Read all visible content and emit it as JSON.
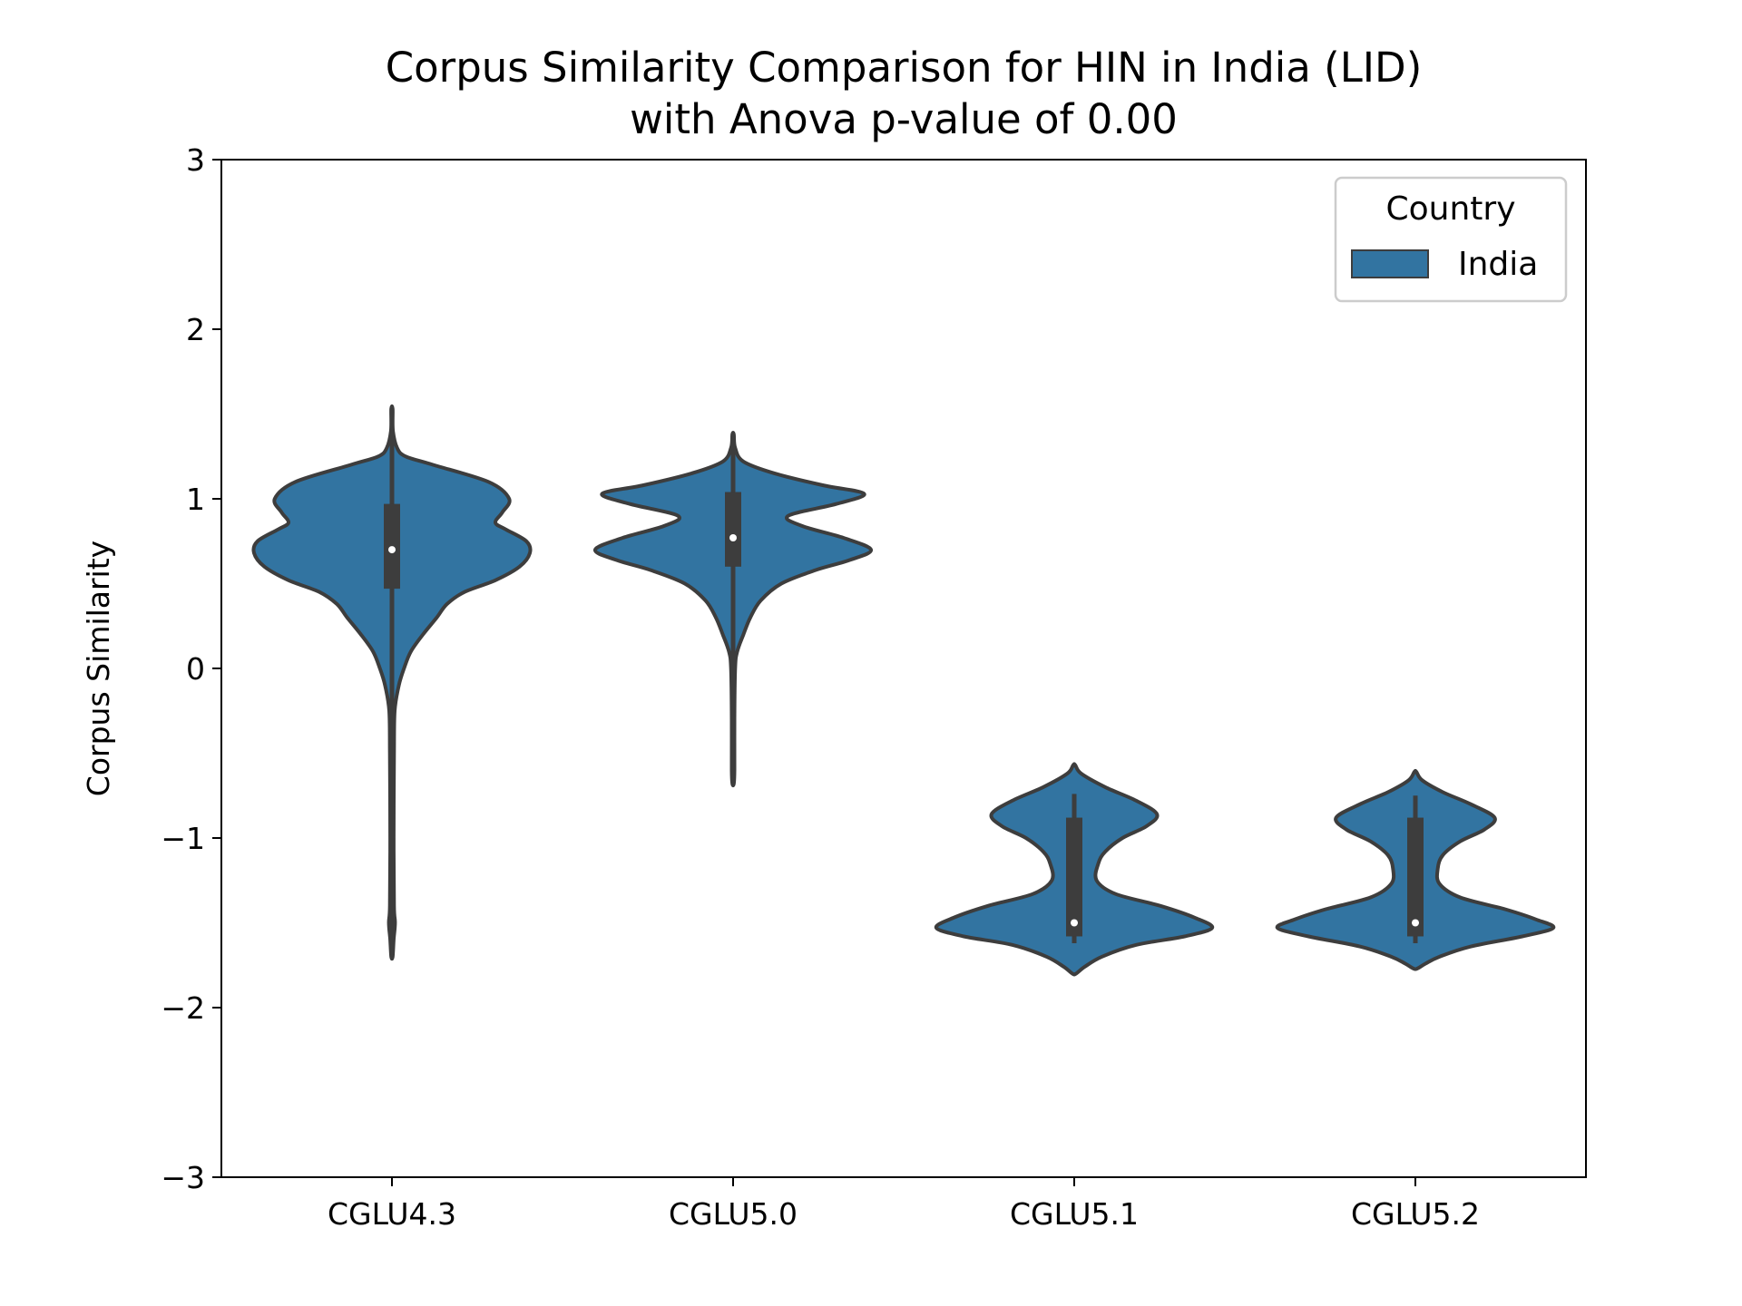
{
  "chart_data": {
    "type": "violin",
    "title": [
      "Corpus Similarity Comparison for HIN in India (LID)",
      "with Anova p-value of 0.00"
    ],
    "xlabel": "",
    "ylabel": "Corpus Similarity",
    "ylim": [
      -3,
      3
    ],
    "yticks": [
      -3,
      -2,
      -1,
      0,
      1,
      2,
      3
    ],
    "ytick_labels": [
      "−3",
      "−2",
      "−1",
      "0",
      "1",
      "2",
      "3"
    ],
    "categories": [
      "CGLU4.3",
      "CGLU5.0",
      "CGLU5.1",
      "CGLU5.2"
    ],
    "legend": {
      "title": "Country",
      "entries": [
        {
          "label": "India",
          "color": "#3274a1"
        }
      ],
      "position": "top-right"
    },
    "colors": {
      "fill": "#3274a1",
      "edge": "#3d3d3d",
      "box": "#3d3d3d",
      "median": "#ffffff"
    },
    "grid": false,
    "series": [
      {
        "name": "India",
        "violins": [
          {
            "category": "CGLU4.3",
            "min": -1.7,
            "max": 1.53,
            "q1": 0.47,
            "median": 0.7,
            "q3": 0.97,
            "whisker_low": -1.7,
            "whisker_high": 1.53,
            "density": [
              [
                1.53,
                0.002
              ],
              [
                1.4,
                0.003
              ],
              [
                1.3,
                0.015
              ],
              [
                1.25,
                0.04
              ],
              [
                1.2,
                0.12
              ],
              [
                1.1,
                0.28
              ],
              [
                1.0,
                0.34
              ],
              [
                0.92,
                0.32
              ],
              [
                0.86,
                0.3
              ],
              [
                0.82,
                0.33
              ],
              [
                0.75,
                0.39
              ],
              [
                0.68,
                0.4
              ],
              [
                0.6,
                0.37
              ],
              [
                0.52,
                0.3
              ],
              [
                0.45,
                0.21
              ],
              [
                0.38,
                0.16
              ],
              [
                0.3,
                0.13
              ],
              [
                0.2,
                0.09
              ],
              [
                0.1,
                0.055
              ],
              [
                0.0,
                0.035
              ],
              [
                -0.1,
                0.02
              ],
              [
                -0.25,
                0.008
              ],
              [
                -0.5,
                0.006
              ],
              [
                -1.0,
                0.005
              ],
              [
                -1.4,
                0.006
              ],
              [
                -1.5,
                0.009
              ],
              [
                -1.6,
                0.005
              ],
              [
                -1.7,
                0.002
              ]
            ]
          },
          {
            "category": "CGLU5.0",
            "min": -0.68,
            "max": 1.38,
            "q1": 0.6,
            "median": 0.77,
            "q3": 1.04,
            "whisker_low": -0.68,
            "whisker_high": 1.38,
            "density": [
              [
                1.38,
                0.002
              ],
              [
                1.3,
                0.006
              ],
              [
                1.22,
                0.03
              ],
              [
                1.15,
                0.12
              ],
              [
                1.08,
                0.26
              ],
              [
                1.03,
                0.38
              ],
              [
                0.97,
                0.3
              ],
              [
                0.9,
                0.16
              ],
              [
                0.84,
                0.2
              ],
              [
                0.77,
                0.32
              ],
              [
                0.7,
                0.4
              ],
              [
                0.64,
                0.34
              ],
              [
                0.58,
                0.24
              ],
              [
                0.5,
                0.14
              ],
              [
                0.4,
                0.08
              ],
              [
                0.3,
                0.05
              ],
              [
                0.2,
                0.03
              ],
              [
                0.1,
                0.012
              ],
              [
                0.0,
                0.006
              ],
              [
                -0.3,
                0.004
              ],
              [
                -0.6,
                0.004
              ],
              [
                -0.68,
                0.002
              ]
            ]
          },
          {
            "category": "CGLU5.1",
            "min": -1.8,
            "max": -0.57,
            "q1": -1.58,
            "median": -1.5,
            "q3": -0.88,
            "whisker_low": -1.62,
            "whisker_high": -0.74,
            "density": [
              [
                -0.57,
                0.003
              ],
              [
                -0.62,
                0.02
              ],
              [
                -0.7,
                0.09
              ],
              [
                -0.78,
                0.18
              ],
              [
                -0.86,
                0.24
              ],
              [
                -0.93,
                0.21
              ],
              [
                -1.0,
                0.14
              ],
              [
                -1.08,
                0.09
              ],
              [
                -1.15,
                0.07
              ],
              [
                -1.25,
                0.065
              ],
              [
                -1.33,
                0.12
              ],
              [
                -1.4,
                0.25
              ],
              [
                -1.47,
                0.35
              ],
              [
                -1.53,
                0.4
              ],
              [
                -1.58,
                0.32
              ],
              [
                -1.63,
                0.18
              ],
              [
                -1.7,
                0.08
              ],
              [
                -1.76,
                0.03
              ],
              [
                -1.8,
                0.005
              ]
            ]
          },
          {
            "category": "CGLU5.2",
            "min": -1.77,
            "max": -0.61,
            "q1": -1.58,
            "median": -1.5,
            "q3": -0.88,
            "whisker_low": -1.62,
            "whisker_high": -0.75,
            "density": [
              [
                -0.61,
                0.003
              ],
              [
                -0.66,
                0.02
              ],
              [
                -0.73,
                0.08
              ],
              [
                -0.8,
                0.16
              ],
              [
                -0.88,
                0.23
              ],
              [
                -0.95,
                0.2
              ],
              [
                -1.02,
                0.13
              ],
              [
                -1.1,
                0.08
              ],
              [
                -1.18,
                0.065
              ],
              [
                -1.27,
                0.07
              ],
              [
                -1.35,
                0.13
              ],
              [
                -1.42,
                0.26
              ],
              [
                -1.48,
                0.35
              ],
              [
                -1.53,
                0.4
              ],
              [
                -1.58,
                0.31
              ],
              [
                -1.64,
                0.16
              ],
              [
                -1.7,
                0.07
              ],
              [
                -1.74,
                0.03
              ],
              [
                -1.77,
                0.005
              ]
            ]
          }
        ]
      }
    ]
  }
}
